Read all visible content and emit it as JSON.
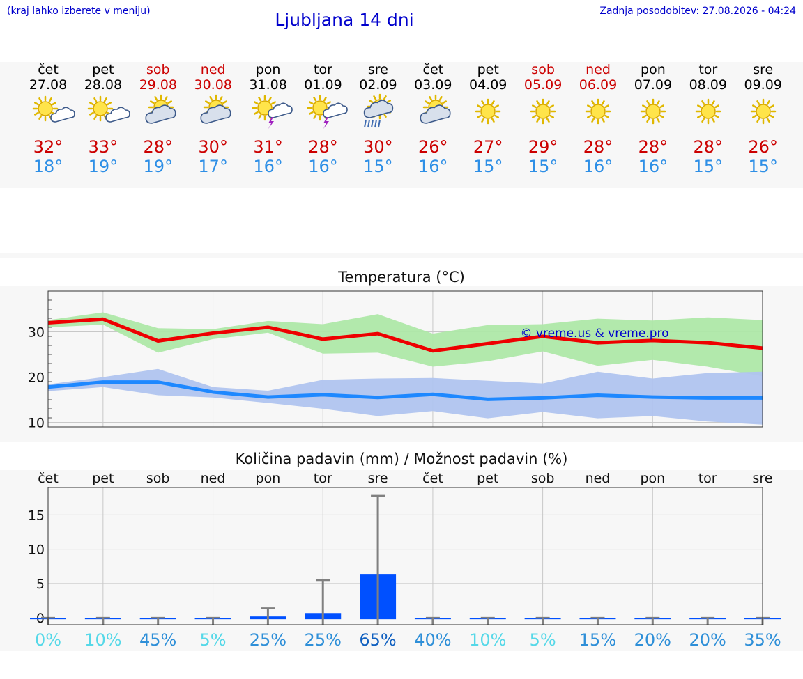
{
  "header": {
    "menu_hint": "(kraj lahko izberete v meniju)",
    "title": "Ljubljana 14 dni",
    "last_update": "Zadnja posodobitev: 27.08.2026 - 04:24"
  },
  "colors": {
    "accent": "#0000cc",
    "max_temp": "#cc0000",
    "min_temp": "#2e8fe6",
    "max_band": "#aee8a8",
    "min_band": "#b0c4ef",
    "rain_bar": "#0050ff",
    "error_bar": "#808080"
  },
  "days": [
    {
      "name": "čet",
      "date": "27.08",
      "weekend": false,
      "icon": "sun-cloud-icon",
      "max": "32°",
      "min": "18°"
    },
    {
      "name": "pet",
      "date": "28.08",
      "weekend": false,
      "icon": "sun-cloud-icon",
      "max": "33°",
      "min": "19°"
    },
    {
      "name": "sob",
      "date": "29.08",
      "weekend": true,
      "icon": "cloud-sun-icon",
      "max": "28°",
      "min": "19°"
    },
    {
      "name": "ned",
      "date": "30.08",
      "weekend": true,
      "icon": "cloud-sun-icon",
      "max": "30°",
      "min": "17°"
    },
    {
      "name": "pon",
      "date": "31.08",
      "weekend": false,
      "icon": "sun-thunder-icon",
      "max": "31°",
      "min": "16°"
    },
    {
      "name": "tor",
      "date": "01.09",
      "weekend": false,
      "icon": "sun-thunder-icon",
      "max": "28°",
      "min": "16°"
    },
    {
      "name": "sre",
      "date": "02.09",
      "weekend": false,
      "icon": "sun-rain-icon",
      "max": "30°",
      "min": "15°"
    },
    {
      "name": "čet",
      "date": "03.09",
      "weekend": false,
      "icon": "cloud-sun-icon",
      "max": "26°",
      "min": "16°"
    },
    {
      "name": "pet",
      "date": "04.09",
      "weekend": false,
      "icon": "sun-icon",
      "max": "27°",
      "min": "15°"
    },
    {
      "name": "sob",
      "date": "05.09",
      "weekend": true,
      "icon": "sun-icon",
      "max": "29°",
      "min": "15°"
    },
    {
      "name": "ned",
      "date": "06.09",
      "weekend": true,
      "icon": "sun-icon",
      "max": "28°",
      "min": "16°"
    },
    {
      "name": "pon",
      "date": "07.09",
      "weekend": false,
      "icon": "sun-icon",
      "max": "28°",
      "min": "16°"
    },
    {
      "name": "tor",
      "date": "08.09",
      "weekend": false,
      "icon": "sun-icon",
      "max": "28°",
      "min": "15°"
    },
    {
      "name": "sre",
      "date": "09.09",
      "weekend": false,
      "icon": "sun-icon",
      "max": "26°",
      "min": "15°"
    }
  ],
  "chart_data": [
    {
      "type": "line",
      "title": "Temperatura (°C)",
      "watermark": "© vreme.us & vreme.pro",
      "ylim": [
        9,
        39
      ],
      "yticks": [
        "10",
        "20",
        "30"
      ],
      "grid": true,
      "x_count": 14,
      "series": [
        {
          "values": [
            32.0,
            32.8,
            28.0,
            29.7,
            31.0,
            28.4,
            29.6,
            25.8,
            27.4,
            29.0,
            27.6,
            28.1,
            27.6,
            26.4
          ],
          "band_low": [
            31.0,
            31.6,
            25.4,
            28.4,
            29.8,
            25.2,
            25.4,
            22.3,
            23.5,
            25.7,
            22.5,
            23.8,
            22.3,
            20.2
          ],
          "band_high": [
            32.6,
            34.3,
            30.8,
            30.6,
            32.4,
            31.7,
            33.9,
            29.6,
            31.5,
            31.7,
            32.9,
            32.5,
            33.2,
            32.6
          ]
        },
        {
          "values": [
            17.8,
            18.9,
            18.9,
            16.7,
            15.6,
            16.1,
            15.5,
            16.2,
            15.1,
            15.4,
            16.0,
            15.6,
            15.4,
            15.4
          ],
          "band_low": [
            16.9,
            17.8,
            16.0,
            15.5,
            14.3,
            13.0,
            11.4,
            12.5,
            10.9,
            12.3,
            10.9,
            11.4,
            10.2,
            9.5
          ],
          "band_high": [
            18.4,
            20.0,
            21.8,
            17.8,
            17.0,
            19.4,
            19.7,
            19.8,
            19.2,
            18.6,
            21.2,
            19.7,
            20.9,
            21.2
          ]
        }
      ]
    },
    {
      "type": "bar",
      "title": "Količina padavin (mm) / Možnost padavin (%)",
      "categories": [
        "čet",
        "pet",
        "sob",
        "ned",
        "pon",
        "tor",
        "sre",
        "čet",
        "pet",
        "sob",
        "ned",
        "pon",
        "tor",
        "sre"
      ],
      "ylim": [
        -1,
        19
      ],
      "yticks": [
        "0",
        "5",
        "10",
        "15"
      ],
      "grid": true,
      "values": [
        0,
        0,
        0,
        0,
        0.2,
        0.7,
        6.4,
        0,
        0,
        0,
        0,
        0,
        0,
        0
      ],
      "error_high": [
        0,
        0,
        0,
        0,
        1.4,
        5.5,
        17.8,
        0,
        0,
        0,
        0,
        0,
        0,
        0
      ],
      "probabilities": [
        "0%",
        "10%",
        "45%",
        "5%",
        "25%",
        "25%",
        "65%",
        "40%",
        "10%",
        "5%",
        "15%",
        "20%",
        "20%",
        "35%"
      ],
      "probability_colors": [
        "#55d8e8",
        "#55d8e8",
        "#2e8fd8",
        "#55d8e8",
        "#2e8fd8",
        "#2e8fd8",
        "#1060c0",
        "#2e8fd8",
        "#55d8e8",
        "#55d8e8",
        "#2e8fd8",
        "#2e8fd8",
        "#2e8fd8",
        "#2e8fd8"
      ]
    }
  ]
}
